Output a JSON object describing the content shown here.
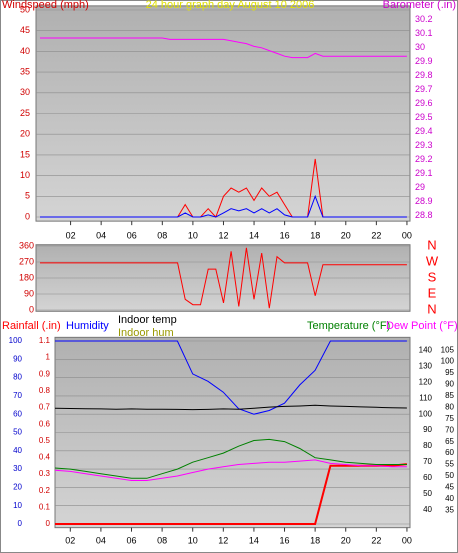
{
  "chart_data": [
    {
      "type": "line",
      "title": "24 hour graph day  August 10 2006",
      "ylabel": "Windspeed (mph)",
      "y2label": "Barometer (.in)",
      "x": [
        0,
        0.5,
        1,
        1.5,
        2,
        2.5,
        3,
        3.5,
        4,
        4.5,
        5,
        5.5,
        6,
        6.5,
        7,
        7.5,
        8,
        8.5,
        9,
        9.5,
        10,
        10.5,
        11,
        11.5,
        12,
        12.5,
        13,
        13.5,
        14,
        14.5,
        15,
        15.5,
        16,
        16.5,
        17,
        17.5,
        18,
        18.5,
        19,
        19.5,
        20,
        20.5,
        21,
        21.5,
        22,
        22.5,
        23,
        23.5,
        24
      ],
      "xlim": [
        0,
        24.2
      ],
      "xticks": [
        {
          "value": 2,
          "label": "02"
        },
        {
          "value": 4,
          "label": "04"
        },
        {
          "value": 6,
          "label": "06"
        },
        {
          "value": 8,
          "label": "08"
        },
        10,
        12,
        14,
        16,
        18,
        20,
        22,
        {
          "value": 24,
          "label": "00"
        }
      ],
      "ylim": [
        0,
        50
      ],
      "yticks": [
        0,
        5,
        10,
        15,
        20,
        25,
        30,
        35,
        40,
        45,
        50
      ],
      "y2lim": [
        28.79,
        30.27
      ],
      "y2ticks": [
        28.8,
        28.9,
        29,
        29.1,
        29.2,
        29.3,
        29.4,
        29.5,
        29.6,
        29.7,
        29.8,
        29.9,
        30,
        30.1,
        30.2
      ],
      "grid": true,
      "series": [
        {
          "color": "#ff0000",
          "values": [
            0,
            0,
            0,
            0,
            0,
            0,
            0,
            0,
            0,
            0,
            0,
            0,
            0,
            0,
            0,
            0,
            0,
            0,
            0,
            3,
            0,
            0,
            2,
            0,
            5,
            7,
            6,
            7,
            4,
            7,
            5,
            6,
            3,
            0,
            0,
            0,
            14,
            0,
            0,
            0,
            0,
            0,
            0,
            0,
            0,
            0,
            0,
            0,
            0
          ]
        },
        {
          "color": "#0000ff",
          "values": [
            0,
            0,
            0,
            0,
            0,
            0,
            0,
            0,
            0,
            0,
            0,
            0,
            0,
            0,
            0,
            0,
            0,
            0,
            0,
            1,
            0,
            0,
            0.5,
            0,
            1,
            2,
            1.5,
            2,
            1,
            2,
            1,
            2,
            0.5,
            0,
            0,
            0,
            5,
            0,
            0,
            0,
            0,
            0,
            0,
            0,
            0,
            0,
            0,
            0,
            0
          ]
        },
        {
          "color": "#ff00ff",
          "axis": "y2",
          "values": [
            30.07,
            30.07,
            30.07,
            30.07,
            30.07,
            30.07,
            30.07,
            30.07,
            30.07,
            30.07,
            30.07,
            30.07,
            30.07,
            30.07,
            30.07,
            30.07,
            30.07,
            30.06,
            30.06,
            30.06,
            30.06,
            30.06,
            30.06,
            30.06,
            30.06,
            30.05,
            30.04,
            30.03,
            30.01,
            30,
            29.98,
            29.96,
            29.94,
            29.93,
            29.93,
            29.93,
            29.96,
            29.94,
            29.94,
            29.94,
            29.94,
            29.94,
            29.94,
            29.94,
            29.94,
            29.94,
            29.94,
            29.94,
            29.94
          ]
        }
      ]
    },
    {
      "type": "line",
      "x": [
        0,
        0.5,
        1,
        1.5,
        2,
        2.5,
        3,
        3.5,
        4,
        4.5,
        5,
        5.5,
        6,
        6.5,
        7,
        7.5,
        8,
        8.5,
        9,
        9.5,
        10,
        10.5,
        11,
        11.5,
        12,
        12.5,
        13,
        13.5,
        14,
        14.5,
        15,
        15.5,
        16,
        16.5,
        17,
        17.5,
        18,
        18.5,
        19,
        19.5,
        20,
        20.5,
        21,
        21.5,
        22,
        22.5,
        23,
        23.5,
        24
      ],
      "xlim": [
        0,
        24.2
      ],
      "ylim": [
        0,
        360
      ],
      "yticks": [
        0,
        90,
        180,
        270,
        360
      ],
      "y2lim": [
        0,
        360
      ],
      "y2ticks": [
        {
          "value": 360,
          "label": "N"
        },
        {
          "value": 270,
          "label": "W"
        },
        {
          "value": 180,
          "label": "S"
        },
        {
          "value": 90,
          "label": "E"
        },
        {
          "value": 0,
          "label": "N"
        }
      ],
      "grid": true,
      "series": [
        {
          "color": "#ff0000",
          "values": [
            265,
            265,
            265,
            265,
            265,
            265,
            265,
            265,
            265,
            265,
            265,
            265,
            265,
            265,
            265,
            265,
            265,
            265,
            265,
            60,
            30,
            30,
            230,
            230,
            40,
            330,
            20,
            350,
            60,
            320,
            10,
            300,
            265,
            265,
            265,
            265,
            80,
            255,
            255,
            255,
            255,
            255,
            255,
            255,
            255,
            255,
            255,
            255,
            255
          ]
        }
      ]
    },
    {
      "type": "line",
      "annotations": [
        "Indoor hum"
      ],
      "x": [
        1,
        2,
        3,
        4,
        5,
        6,
        7,
        8,
        9,
        10,
        11,
        12,
        13,
        14,
        15,
        16,
        17,
        18,
        19,
        20,
        21,
        22,
        23,
        24
      ],
      "xlim": [
        1,
        24.2
      ],
      "xticks": [
        {
          "value": 2,
          "label": "02"
        },
        {
          "value": 4,
          "label": "04"
        },
        {
          "value": 6,
          "label": "06"
        },
        {
          "value": 8,
          "label": "08"
        },
        10,
        12,
        14,
        16,
        18,
        20,
        22,
        {
          "value": 24,
          "label": "00"
        }
      ],
      "ylim": [
        0,
        100
      ],
      "yticks": [
        0,
        10,
        20,
        30,
        40,
        50,
        60,
        70,
        80,
        90,
        100
      ],
      "y2lim": [
        0,
        1.1
      ],
      "y2ticks": [
        0,
        0.1,
        0.2,
        0.3,
        0.4,
        0.5,
        0.6,
        0.7,
        0.8,
        0.9,
        1,
        1.1
      ],
      "y3lim": [
        29,
        109
      ],
      "y3ticks": [
        35,
        40,
        45,
        50,
        55,
        60,
        65,
        70,
        75,
        80,
        85,
        90,
        95,
        100,
        105
      ],
      "y4lim": [
        31,
        146
      ],
      "y4ticks": [
        40,
        50,
        60,
        70,
        80,
        90,
        100,
        110,
        120,
        130,
        140
      ],
      "grid": true,
      "series": [
        {
          "name": "Rainfall (.in)",
          "color": "#ff0000",
          "axis": "y2",
          "values": [
            0,
            0,
            0,
            0,
            0,
            0,
            0,
            0,
            0,
            0,
            0,
            0,
            0,
            0,
            0,
            0,
            0,
            0,
            0.35,
            0.35,
            0.35,
            0.35,
            0.35,
            0.36
          ]
        },
        {
          "name": "Humidity",
          "color": "#0000ff",
          "values": [
            100,
            100,
            100,
            100,
            100,
            100,
            100,
            100,
            100,
            82,
            78,
            72,
            63,
            60,
            62,
            66,
            76,
            84,
            100,
            100,
            100,
            100,
            100,
            100
          ]
        },
        {
          "name": "Indoor temp",
          "color": "#000000",
          "axis": "y3",
          "values": [
            79.6,
            79.5,
            79.4,
            79.3,
            79.2,
            79.3,
            79.2,
            79.2,
            79.1,
            79,
            79.1,
            79.3,
            79.2,
            79.6,
            80.1,
            80.4,
            80.6,
            80.9,
            80.6,
            80.4,
            80.2,
            80,
            79.8,
            79.7
          ]
        },
        {
          "name": "Temperature (°F)",
          "color": "#008000",
          "axis": "y3",
          "values": [
            53.5,
            53,
            52,
            51,
            50,
            49,
            49,
            51,
            53,
            56,
            58,
            60,
            63,
            65.5,
            66,
            65,
            62,
            58,
            57,
            56,
            55.5,
            55,
            55,
            55
          ]
        },
        {
          "name": "Dew Point (°F)",
          "color": "#ff00ff",
          "axis": "y3",
          "values": [
            52.5,
            52,
            51,
            50,
            49,
            48,
            48,
            49,
            50,
            51.5,
            53,
            54,
            55,
            55.5,
            56,
            56,
            56.5,
            57,
            55.5,
            55,
            54.5,
            54.5,
            54,
            54
          ]
        }
      ]
    }
  ]
}
